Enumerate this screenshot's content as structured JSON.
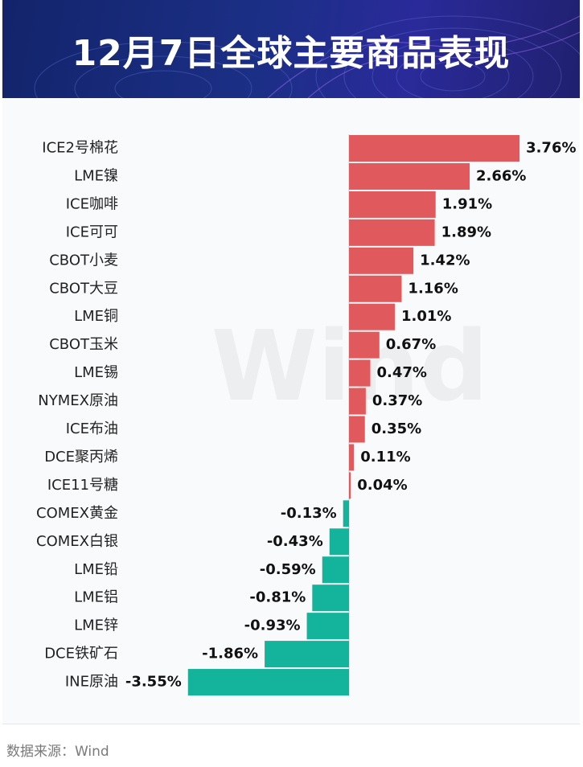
{
  "title": "12月7日全球主要商品表现",
  "source": "数据来源：Wind",
  "watermark": "Wind",
  "colors": {
    "positive": "#e05a5d",
    "negative": "#14b39b",
    "banner": "#1b2f86"
  },
  "chart_data": {
    "type": "bar",
    "orientation": "horizontal",
    "unit": "%",
    "categories": [
      "ICE2号棉花",
      "LME镍",
      "ICE咖啡",
      "ICE可可",
      "CBOT小麦",
      "CBOT大豆",
      "LME铜",
      "CBOT玉米",
      "LME锡",
      "NYMEX原油",
      "ICE布油",
      "DCE聚丙烯",
      "ICE11号糖",
      "COMEX黄金",
      "COMEX白银",
      "LME铅",
      "LME铝",
      "LME锌",
      "DCE铁矿石",
      "INE原油"
    ],
    "values": [
      3.76,
      2.66,
      1.91,
      1.89,
      1.42,
      1.16,
      1.01,
      0.67,
      0.47,
      0.37,
      0.35,
      0.11,
      0.04,
      -0.13,
      -0.43,
      -0.59,
      -0.81,
      -0.93,
      -1.86,
      -3.55
    ],
    "labels": [
      "3.76%",
      "2.66%",
      "1.91%",
      "1.89%",
      "1.42%",
      "1.16%",
      "1.01%",
      "0.67%",
      "0.47%",
      "0.37%",
      "0.35%",
      "0.11%",
      "0.04%",
      "-0.13%",
      "-0.43%",
      "-0.59%",
      "-0.81%",
      "-0.93%",
      "-1.86%",
      "-3.55%"
    ],
    "title": "",
    "xlabel": "",
    "ylabel": "",
    "grid": false,
    "legend": "none"
  }
}
